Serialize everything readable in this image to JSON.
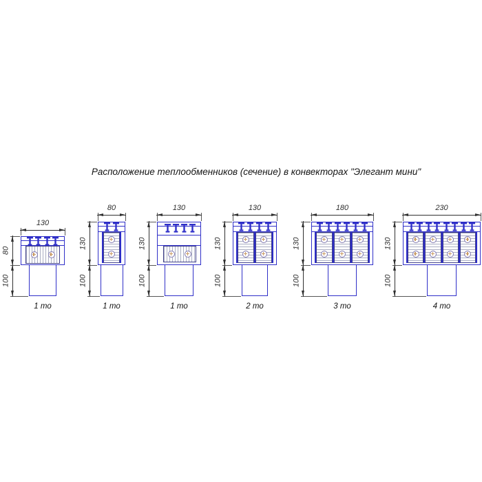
{
  "title": "Расположение теплообменников (сечение) в конвекторах \"Элегант мини\"",
  "colors": {
    "casing_outline": "#2e2ec8",
    "exchanger_border": "#3f3f8a",
    "hatch_line": "#a9adc2",
    "tube_outline": "#8078b0",
    "tube_mark": "#c89a62",
    "dimension": "#2f2f2f",
    "background": "#ffffff"
  },
  "diagrams": [
    {
      "id": 1,
      "label": "1 то",
      "width_mm": "130",
      "body_height_mm": "80",
      "duct_height_mm": "100",
      "heat_exchangers": 1,
      "exchanger_orientation": "horizontal",
      "tubes": 2,
      "bolts": 4
    },
    {
      "id": 2,
      "label": "1 то",
      "width_mm": "80",
      "body_height_mm": "130",
      "duct_height_mm": "100",
      "heat_exchangers": 1,
      "exchanger_orientation": "vertical",
      "tubes": 2,
      "bolts": 2
    },
    {
      "id": 3,
      "label": "1 то",
      "width_mm": "130",
      "body_height_mm": "130",
      "duct_height_mm": "100",
      "heat_exchangers": 1,
      "exchanger_orientation": "horizontal",
      "tubes": 2,
      "bolts": 4
    },
    {
      "id": 4,
      "label": "2 то",
      "width_mm": "130",
      "body_height_mm": "130",
      "duct_height_mm": "100",
      "heat_exchangers": 2,
      "exchanger_orientation": "vertical",
      "tubes": 4,
      "bolts": 4
    },
    {
      "id": 5,
      "label": "3 то",
      "width_mm": "180",
      "body_height_mm": "130",
      "duct_height_mm": "100",
      "heat_exchangers": 3,
      "exchanger_orientation": "vertical",
      "tubes": 6,
      "bolts": 6
    },
    {
      "id": 6,
      "label": "4 то",
      "width_mm": "230",
      "body_height_mm": "130",
      "duct_height_mm": "100",
      "heat_exchangers": 4,
      "exchanger_orientation": "vertical",
      "tubes": 8,
      "bolts": 8
    }
  ]
}
